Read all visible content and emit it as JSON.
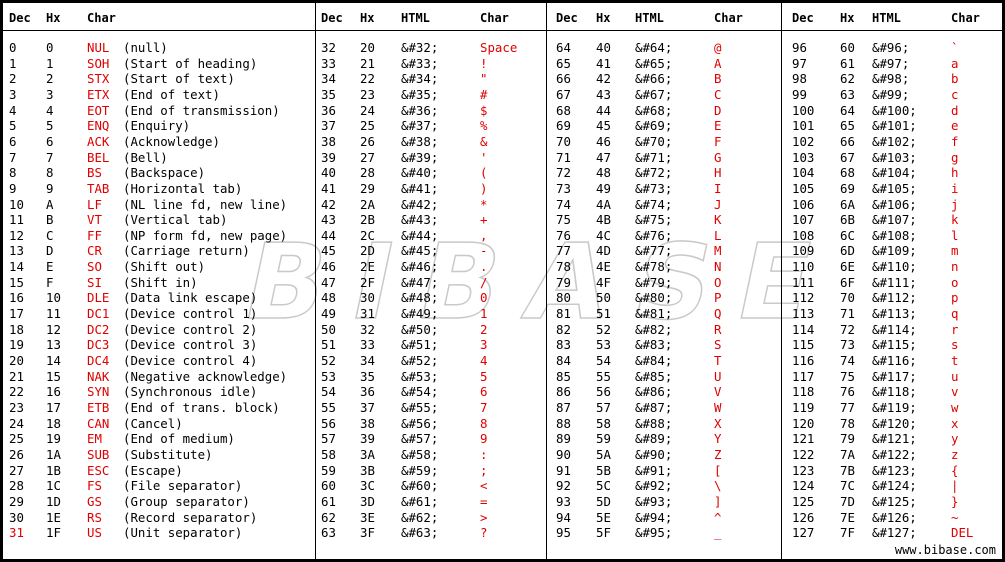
{
  "colors": {
    "highlight": "#e00000",
    "text": "#000000",
    "background": "#ffffff"
  },
  "footer": "www.bibase.com",
  "watermark": "BIBASE",
  "sections": [
    {
      "headers": [
        "Dec",
        "Hx",
        "Char"
      ],
      "rows": [
        [
          "0",
          "0",
          "NUL",
          "(null)"
        ],
        [
          "1",
          "1",
          "SOH",
          "(Start of heading)"
        ],
        [
          "2",
          "2",
          "STX",
          "(Start of text)"
        ],
        [
          "3",
          "3",
          "ETX",
          "(End of text)"
        ],
        [
          "4",
          "4",
          "EOT",
          "(End of transmission)"
        ],
        [
          "5",
          "5",
          "ENQ",
          "(Enquiry)"
        ],
        [
          "6",
          "6",
          "ACK",
          "(Acknowledge)"
        ],
        [
          "7",
          "7",
          "BEL",
          "(Bell)"
        ],
        [
          "8",
          "8",
          "BS",
          "(Backspace)"
        ],
        [
          "9",
          "9",
          "TAB",
          "(Horizontal tab)"
        ],
        [
          "10",
          "A",
          "LF",
          "(NL line fd, new line)"
        ],
        [
          "11",
          "B",
          "VT",
          "(Vertical tab)"
        ],
        [
          "12",
          "C",
          "FF",
          "(NP form fd, new page)"
        ],
        [
          "13",
          "D",
          "CR",
          "(Carriage return)"
        ],
        [
          "14",
          "E",
          "SO",
          "(Shift out)"
        ],
        [
          "15",
          "F",
          "SI",
          "(Shift in)"
        ],
        [
          "16",
          "10",
          "DLE",
          "(Data link escape)"
        ],
        [
          "17",
          "11",
          "DC1",
          "(Device control 1)"
        ],
        [
          "18",
          "12",
          "DC2",
          "(Device control 2)"
        ],
        [
          "19",
          "13",
          "DC3",
          "(Device control 3)"
        ],
        [
          "20",
          "14",
          "DC4",
          "(Device control 4)"
        ],
        [
          "21",
          "15",
          "NAK",
          "(Negative acknowledge)"
        ],
        [
          "22",
          "16",
          "SYN",
          "(Synchronous idle)"
        ],
        [
          "23",
          "17",
          "ETB",
          "(End of trans. block)"
        ],
        [
          "24",
          "18",
          "CAN",
          "(Cancel)"
        ],
        [
          "25",
          "19",
          "EM",
          "(End of medium)"
        ],
        [
          "26",
          "1A",
          "SUB",
          "(Substitute)"
        ],
        [
          "27",
          "1B",
          "ESC",
          "(Escape)"
        ],
        [
          "28",
          "1C",
          "FS",
          "(File separator)"
        ],
        [
          "29",
          "1D",
          "GS",
          "(Group separator)"
        ],
        [
          "30",
          "1E",
          "RS",
          "(Record separator)"
        ],
        [
          "31",
          "1F",
          "US",
          "(Unit separator)"
        ]
      ]
    },
    {
      "headers": [
        "Dec",
        "Hx",
        "HTML",
        "Char"
      ],
      "rows": [
        [
          "32",
          "20",
          "&#32;",
          "Space"
        ],
        [
          "33",
          "21",
          "&#33;",
          "!"
        ],
        [
          "34",
          "22",
          "&#34;",
          "\""
        ],
        [
          "35",
          "23",
          "&#35;",
          "#"
        ],
        [
          "36",
          "24",
          "&#36;",
          "$"
        ],
        [
          "37",
          "25",
          "&#37;",
          "%"
        ],
        [
          "38",
          "26",
          "&#38;",
          "&"
        ],
        [
          "39",
          "27",
          "&#39;",
          "'"
        ],
        [
          "40",
          "28",
          "&#40;",
          "("
        ],
        [
          "41",
          "29",
          "&#41;",
          ")"
        ],
        [
          "42",
          "2A",
          "&#42;",
          "*"
        ],
        [
          "43",
          "2B",
          "&#43;",
          "+"
        ],
        [
          "44",
          "2C",
          "&#44;",
          ","
        ],
        [
          "45",
          "2D",
          "&#45;",
          "-"
        ],
        [
          "46",
          "2E",
          "&#46;",
          "."
        ],
        [
          "47",
          "2F",
          "&#47;",
          "/"
        ],
        [
          "48",
          "30",
          "&#48;",
          "0"
        ],
        [
          "49",
          "31",
          "&#49;",
          "1"
        ],
        [
          "50",
          "32",
          "&#50;",
          "2"
        ],
        [
          "51",
          "33",
          "&#51;",
          "3"
        ],
        [
          "52",
          "34",
          "&#52;",
          "4"
        ],
        [
          "53",
          "35",
          "&#53;",
          "5"
        ],
        [
          "54",
          "36",
          "&#54;",
          "6"
        ],
        [
          "55",
          "37",
          "&#55;",
          "7"
        ],
        [
          "56",
          "38",
          "&#56;",
          "8"
        ],
        [
          "57",
          "39",
          "&#57;",
          "9"
        ],
        [
          "58",
          "3A",
          "&#58;",
          ":"
        ],
        [
          "59",
          "3B",
          "&#59;",
          ";"
        ],
        [
          "60",
          "3C",
          "&#60;",
          "<"
        ],
        [
          "61",
          "3D",
          "&#61;",
          "="
        ],
        [
          "62",
          "3E",
          "&#62;",
          ">"
        ],
        [
          "63",
          "3F",
          "&#63;",
          "?"
        ]
      ]
    },
    {
      "headers": [
        "Dec",
        "Hx",
        "HTML",
        "Char"
      ],
      "rows": [
        [
          "64",
          "40",
          "&#64;",
          "@"
        ],
        [
          "65",
          "41",
          "&#65;",
          "A"
        ],
        [
          "66",
          "42",
          "&#66;",
          "B"
        ],
        [
          "67",
          "43",
          "&#67;",
          "C"
        ],
        [
          "68",
          "44",
          "&#68;",
          "D"
        ],
        [
          "69",
          "45",
          "&#69;",
          "E"
        ],
        [
          "70",
          "46",
          "&#70;",
          "F"
        ],
        [
          "71",
          "47",
          "&#71;",
          "G"
        ],
        [
          "72",
          "48",
          "&#72;",
          "H"
        ],
        [
          "73",
          "49",
          "&#73;",
          "I"
        ],
        [
          "74",
          "4A",
          "&#74;",
          "J"
        ],
        [
          "75",
          "4B",
          "&#75;",
          "K"
        ],
        [
          "76",
          "4C",
          "&#76;",
          "L"
        ],
        [
          "77",
          "4D",
          "&#77;",
          "M"
        ],
        [
          "78",
          "4E",
          "&#78;",
          "N"
        ],
        [
          "79",
          "4F",
          "&#79;",
          "O"
        ],
        [
          "80",
          "50",
          "&#80;",
          "P"
        ],
        [
          "81",
          "51",
          "&#81;",
          "Q"
        ],
        [
          "82",
          "52",
          "&#82;",
          "R"
        ],
        [
          "83",
          "53",
          "&#83;",
          "S"
        ],
        [
          "84",
          "54",
          "&#84;",
          "T"
        ],
        [
          "85",
          "55",
          "&#85;",
          "U"
        ],
        [
          "86",
          "56",
          "&#86;",
          "V"
        ],
        [
          "87",
          "57",
          "&#87;",
          "W"
        ],
        [
          "88",
          "58",
          "&#88;",
          "X"
        ],
        [
          "89",
          "59",
          "&#89;",
          "Y"
        ],
        [
          "90",
          "5A",
          "&#90;",
          "Z"
        ],
        [
          "91",
          "5B",
          "&#91;",
          "["
        ],
        [
          "92",
          "5C",
          "&#92;",
          "\\"
        ],
        [
          "93",
          "5D",
          "&#93;",
          "]"
        ],
        [
          "94",
          "5E",
          "&#94;",
          "^"
        ],
        [
          "95",
          "5F",
          "&#95;",
          "_"
        ]
      ]
    },
    {
      "headers": [
        "Dec",
        "Hx",
        "HTML",
        "Char"
      ],
      "rows": [
        [
          "96",
          "60",
          "&#96;",
          "`"
        ],
        [
          "97",
          "61",
          "&#97;",
          "a"
        ],
        [
          "98",
          "62",
          "&#98;",
          "b"
        ],
        [
          "99",
          "63",
          "&#99;",
          "c"
        ],
        [
          "100",
          "64",
          "&#100;",
          "d"
        ],
        [
          "101",
          "65",
          "&#101;",
          "e"
        ],
        [
          "102",
          "66",
          "&#102;",
          "f"
        ],
        [
          "103",
          "67",
          "&#103;",
          "g"
        ],
        [
          "104",
          "68",
          "&#104;",
          "h"
        ],
        [
          "105",
          "69",
          "&#105;",
          "i"
        ],
        [
          "106",
          "6A",
          "&#106;",
          "j"
        ],
        [
          "107",
          "6B",
          "&#107;",
          "k"
        ],
        [
          "108",
          "6C",
          "&#108;",
          "l"
        ],
        [
          "109",
          "6D",
          "&#109;",
          "m"
        ],
        [
          "110",
          "6E",
          "&#110;",
          "n"
        ],
        [
          "111",
          "6F",
          "&#111;",
          "o"
        ],
        [
          "112",
          "70",
          "&#112;",
          "p"
        ],
        [
          "113",
          "71",
          "&#113;",
          "q"
        ],
        [
          "114",
          "72",
          "&#114;",
          "r"
        ],
        [
          "115",
          "73",
          "&#115;",
          "s"
        ],
        [
          "116",
          "74",
          "&#116;",
          "t"
        ],
        [
          "117",
          "75",
          "&#117;",
          "u"
        ],
        [
          "118",
          "76",
          "&#118;",
          "v"
        ],
        [
          "119",
          "77",
          "&#119;",
          "w"
        ],
        [
          "120",
          "78",
          "&#120;",
          "x"
        ],
        [
          "121",
          "79",
          "&#121;",
          "y"
        ],
        [
          "122",
          "7A",
          "&#122;",
          "z"
        ],
        [
          "123",
          "7B",
          "&#123;",
          "{"
        ],
        [
          "124",
          "7C",
          "&#124;",
          "|"
        ],
        [
          "125",
          "7D",
          "&#125;",
          "}"
        ],
        [
          "126",
          "7E",
          "&#126;",
          "~"
        ],
        [
          "127",
          "7F",
          "&#127;",
          "DEL"
        ]
      ]
    }
  ]
}
